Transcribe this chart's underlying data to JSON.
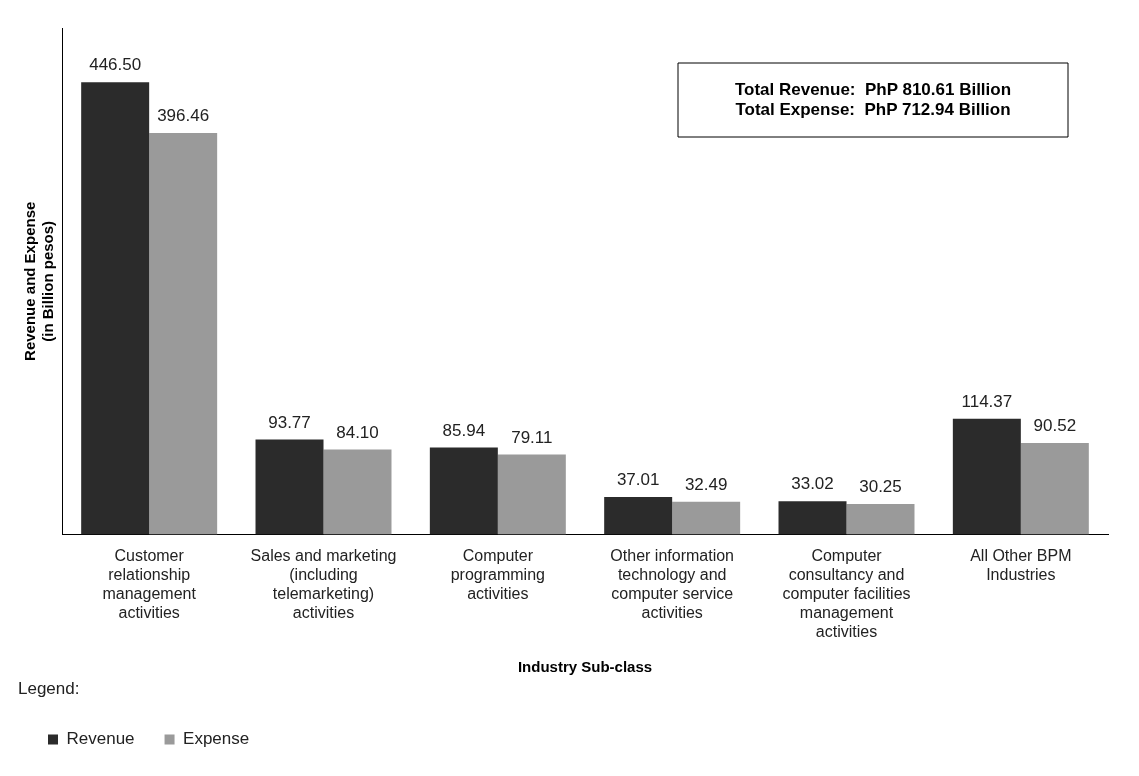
{
  "chart_data": {
    "type": "bar",
    "xlabel": "Industry Sub-class",
    "ylabel": "Revenue and Expense\n(in Billion pesos)",
    "legend_title": "Legend:",
    "legend": "bottom left",
    "tick_labels": "x",
    "grid": false,
    "categories": [
      "Customer relationship management activities",
      "Sales and marketing (including telemarketing) activities",
      "Computer programming activities",
      "Other information technology and computer service activities",
      "Computer consultancy and computer facilities management activities",
      "All Other BPM Industries"
    ],
    "series": [
      {
        "name": "Revenue",
        "color": "#2b2b2b",
        "values": [
          446.5,
          93.77,
          85.94,
          37.01,
          33.02,
          114.37
        ],
        "value_labels": [
          "446.50",
          "93.77",
          "85.94",
          "37.01",
          "33.02",
          "114.37"
        ]
      },
      {
        "name": "Expense",
        "color": "#9a9a9a",
        "values": [
          396.46,
          84.1,
          79.11,
          32.49,
          30.25,
          90.52
        ],
        "value_labels": [
          "396.46",
          "84.10",
          "79.11",
          "32.49",
          "30.25",
          "90.52"
        ]
      }
    ],
    "annotations": [
      "Total Revenue:  PhP 810.61 Billion",
      "Total Expense:  PhP 712.94 Billion"
    ]
  }
}
